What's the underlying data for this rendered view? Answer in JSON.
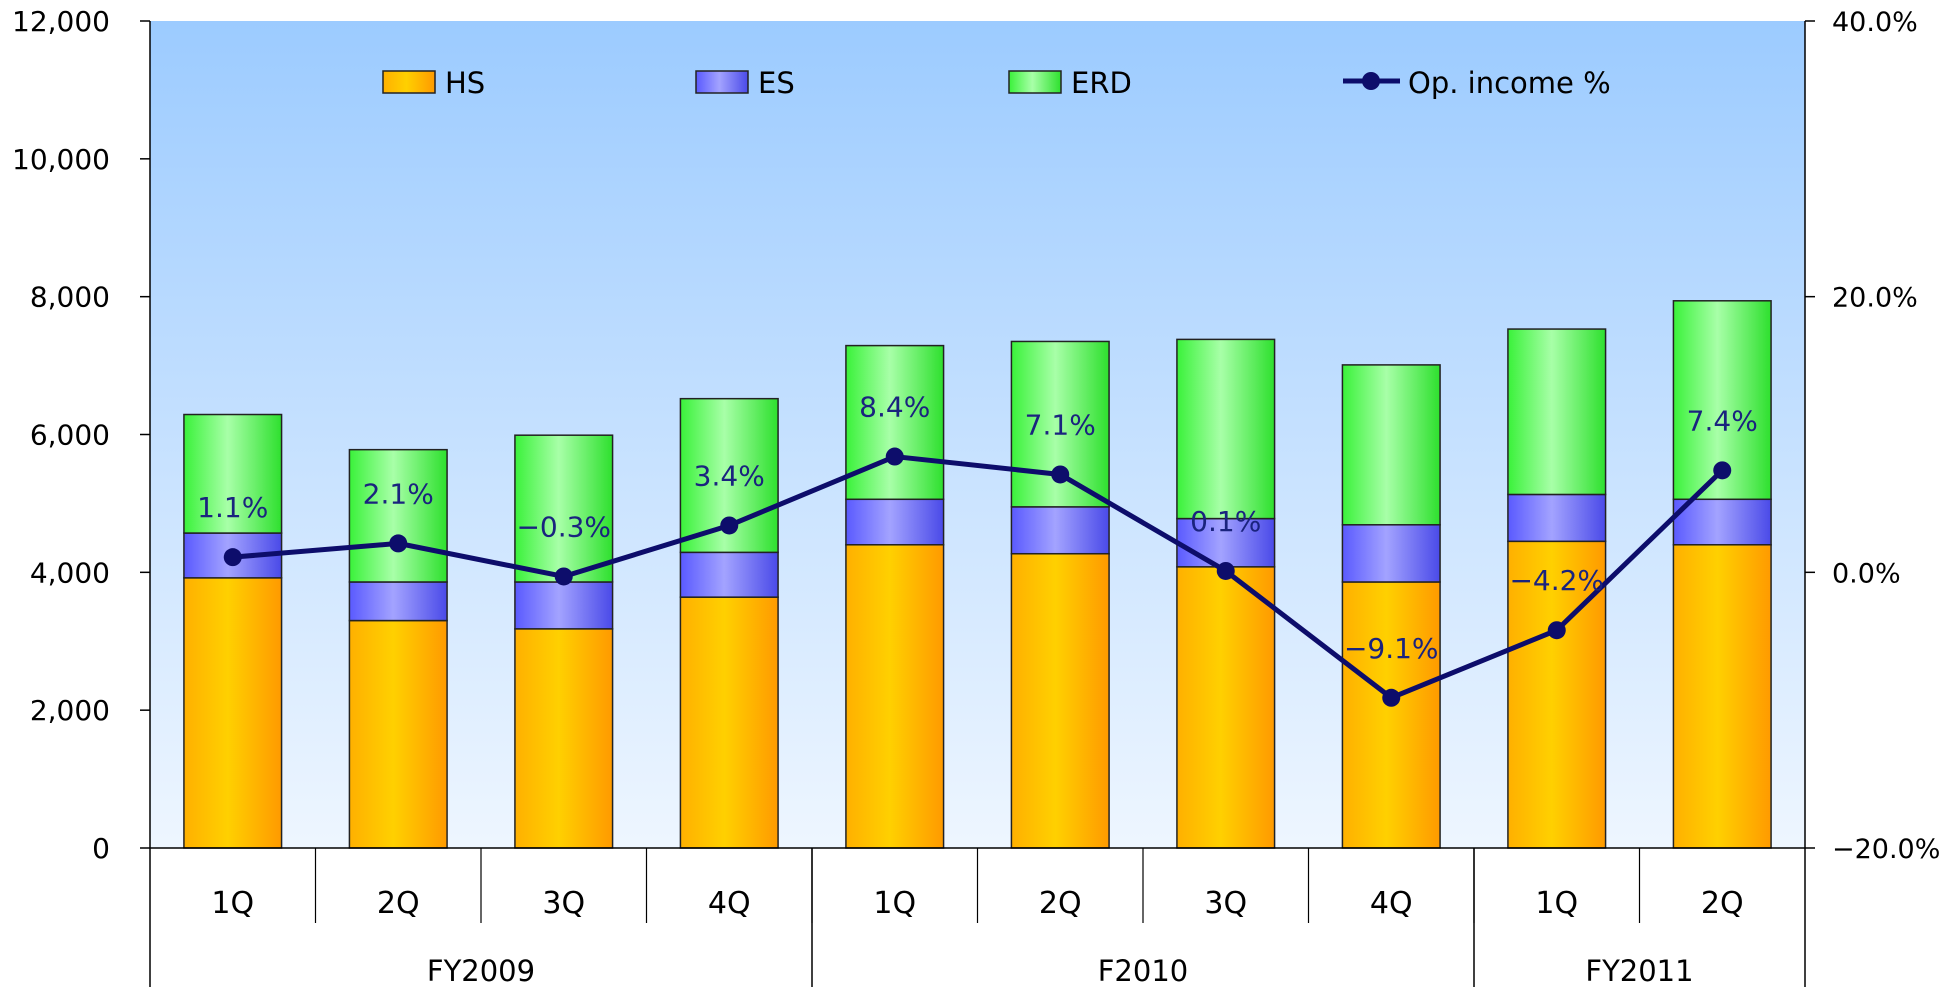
{
  "chart_data": {
    "type": "bar",
    "stacked": true,
    "categories": [
      "1Q",
      "2Q",
      "3Q",
      "4Q",
      "1Q",
      "2Q",
      "3Q",
      "4Q",
      "1Q",
      "2Q"
    ],
    "groups": [
      {
        "label": "FY2009",
        "span": 4
      },
      {
        "label": "F2010",
        "span": 4
      },
      {
        "label": "FY2011",
        "span": 2
      }
    ],
    "series": [
      {
        "name": "HS",
        "values": [
          3920,
          3300,
          3180,
          3640,
          4400,
          4270,
          4080,
          3860,
          4450,
          4400
        ],
        "color": "#ffc000"
      },
      {
        "name": "ES",
        "values": [
          650,
          560,
          680,
          650,
          660,
          680,
          700,
          830,
          680,
          660
        ],
        "color": "#7b7bff"
      },
      {
        "name": "ERD",
        "values": [
          1720,
          1920,
          2130,
          2230,
          2230,
          2400,
          2600,
          2320,
          2400,
          2880
        ],
        "color": "#66ff66"
      }
    ],
    "line_series": {
      "name": "Op. income %",
      "values": [
        1.1,
        2.1,
        -0.3,
        3.4,
        8.4,
        7.1,
        0.1,
        -9.1,
        -4.2,
        7.4
      ],
      "labels": [
        "1.1%",
        "2.1%",
        "−0.3%",
        "3.4%",
        "8.4%",
        "7.1%",
        "0.1%",
        "−9.1%",
        "−4.2%",
        "7.4%"
      ],
      "color": "#0d0d6b"
    },
    "y_left": {
      "min": 0,
      "max": 12000,
      "ticks": [
        "0",
        "2,000",
        "4,000",
        "6,000",
        "8,000",
        "10,000",
        "12,000"
      ]
    },
    "y_right": {
      "min": -20,
      "max": 40,
      "ticks": [
        "−20.0%",
        "0.0%",
        "20.0%",
        "40.0%"
      ]
    },
    "legend": {
      "position": "top",
      "items": [
        "HS",
        "ES",
        "ERD",
        "Op. income %"
      ]
    },
    "grid": false
  }
}
